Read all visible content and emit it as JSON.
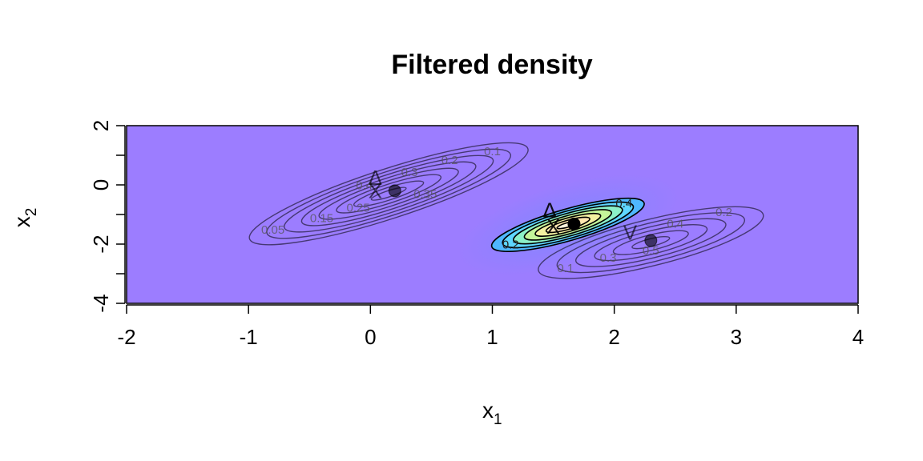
{
  "chart_data": {
    "type": "contour",
    "title": "Filtered density",
    "xlabel": {
      "main": "x",
      "sub": "1"
    },
    "ylabel": {
      "main": "x",
      "sub": "2"
    },
    "xlim": [
      -2,
      4
    ],
    "ylim": [
      -4,
      2
    ],
    "x_ticks": [
      -2,
      -1,
      0,
      1,
      2,
      3,
      4
    ],
    "x_tick_labels": [
      "-2",
      "-1",
      "0",
      "1",
      "2",
      "3",
      "4"
    ],
    "y_ticks": [
      -4,
      -3,
      -2,
      -1,
      0,
      1,
      2
    ],
    "y_tick_labels": [
      "-4",
      "-2",
      "0",
      "2"
    ],
    "y_tick_label_values": [
      -4,
      -2,
      0,
      2
    ],
    "background_color": "#9c7dff",
    "components": [
      {
        "name": "upper-left",
        "center": [
          0.15,
          -0.3
        ],
        "rx_half_width": 1.2,
        "angle_deg": -18,
        "aspect": 0.17,
        "levels": [
          0.05,
          0.1,
          0.15,
          0.2,
          0.25,
          0.3,
          0.35,
          0.4
        ],
        "opacity": 0.55,
        "filled": false,
        "labels": [
          {
            "text": "0.05",
            "x": -0.8,
            "y": -1.65
          },
          {
            "text": "0.1",
            "x": 1.0,
            "y": 1.0
          },
          {
            "text": "0.15",
            "x": -0.4,
            "y": -1.25
          },
          {
            "text": "0.2",
            "x": 0.65,
            "y": 0.7
          },
          {
            "text": "0.25",
            "x": -0.1,
            "y": -0.9
          },
          {
            "text": "0.3",
            "x": 0.32,
            "y": 0.3
          },
          {
            "text": "0.35",
            "x": 0.45,
            "y": -0.45
          },
          {
            "text": "0.4",
            "x": -0.05,
            "y": -0.15
          }
        ],
        "point": {
          "x": 0.2,
          "y": -0.2,
          "alpha": 0.6
        },
        "markers": [
          {
            "text": "Δ",
            "x": 0.04,
            "y": 0.0
          },
          {
            "text": "X",
            "x": 0.04,
            "y": -0.45
          }
        ]
      },
      {
        "name": "center",
        "center": [
          1.62,
          -1.35
        ],
        "rx_half_width": 0.65,
        "angle_deg": -16,
        "aspect": 0.2,
        "levels": [
          0.2,
          0.4,
          0.6,
          0.8,
          1.0,
          1.2,
          1.4
        ],
        "opacity": 1.0,
        "filled": true,
        "labels": [
          {
            "text": "0.2",
            "x": 1.15,
            "y": -2.15
          },
          {
            "text": "0.4",
            "x": 2.08,
            "y": -0.75
          }
        ],
        "point": {
          "x": 1.67,
          "y": -1.32,
          "alpha": 1.0
        },
        "markers": [
          {
            "text": "Δ",
            "x": 1.47,
            "y": -1.1
          },
          {
            "text": "X",
            "x": 1.5,
            "y": -1.65
          }
        ]
      },
      {
        "name": "lower-right",
        "center": [
          2.3,
          -1.95
        ],
        "rx_half_width": 0.95,
        "angle_deg": -14,
        "aspect": 0.2,
        "levels": [
          0.1,
          0.2,
          0.3,
          0.4,
          0.5,
          0.6
        ],
        "opacity": 0.55,
        "filled": false,
        "labels": [
          {
            "text": "0.1",
            "x": 1.6,
            "y": -2.95
          },
          {
            "text": "0.2",
            "x": 2.9,
            "y": -1.05
          },
          {
            "text": "0.3",
            "x": 1.95,
            "y": -2.6
          },
          {
            "text": "0.4",
            "x": 2.5,
            "y": -1.45
          },
          {
            "text": "0.5",
            "x": 2.3,
            "y": -2.35
          }
        ],
        "point": {
          "x": 2.3,
          "y": -1.88,
          "alpha": 0.6
        },
        "markers": [
          {
            "text": "V",
            "x": 2.13,
            "y": -1.85
          }
        ]
      }
    ]
  }
}
